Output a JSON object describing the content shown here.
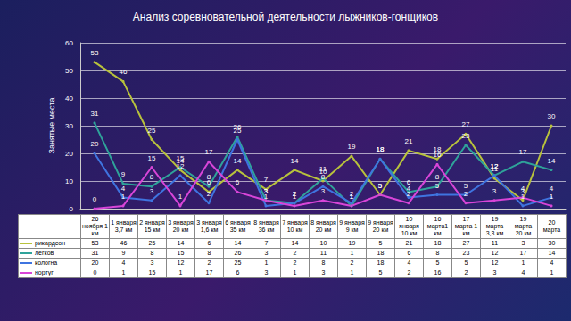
{
  "chart_data": {
    "type": "line",
    "title": "Анализ соревновательной деятельности лыжников-гонщиков",
    "y_label": "Занятые места",
    "categories": [
      "26 ноября 1 км",
      "1 января 3,7 км",
      "2 января 15 км",
      "3 января 20 км",
      "3 января 1,6 км",
      "6 января 35 км",
      "8 января 36 км",
      "7 января 10 км",
      "8 января 20 км",
      "9 января 9 км",
      "9 января 20 км",
      "10 января 10 км",
      "16 марта1 км",
      "17 марта 1 км",
      "19 марта 3,3 км",
      "19 марта 20 км",
      "20 марта"
    ],
    "series": [
      {
        "name": "рикардсон",
        "color": "#b8c23c",
        "values": [
          53,
          46,
          25,
          14,
          6,
          14,
          7,
          14,
          10,
          19,
          5,
          21,
          18,
          27,
          11,
          3,
          30
        ]
      },
      {
        "name": "легков",
        "color": "#2fa39a",
        "values": [
          31,
          9,
          8,
          15,
          8,
          26,
          3,
          2,
          11,
          1,
          18,
          6,
          8,
          23,
          12,
          17,
          14
        ]
      },
      {
        "name": "кологна",
        "color": "#3f74e0",
        "values": [
          20,
          4,
          3,
          12,
          2,
          25,
          1,
          2,
          8,
          2,
          18,
          4,
          5,
          5,
          12,
          1,
          4
        ]
      },
      {
        "name": "нортуг",
        "color": "#d845d8",
        "values": [
          0,
          1,
          15,
          1,
          17,
          6,
          3,
          1,
          3,
          1,
          5,
          2,
          16,
          2,
          3,
          4,
          1
        ]
      }
    ],
    "ylim": [
      0,
      60
    ],
    "yticks": [
      0,
      10,
      20,
      30,
      40,
      50,
      60
    ],
    "grid": true,
    "data_labels": true,
    "tick_labels": "y"
  }
}
